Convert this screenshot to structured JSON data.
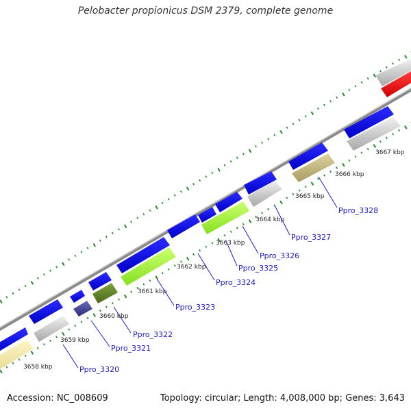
{
  "title": "Pelobacter propionicus DSM 2379, complete genome",
  "footer": {
    "accession": "Accession: NC_008609",
    "summary": "Topology: circular; Length: 4,008,000 bp; Genes: 3,643"
  },
  "colors": {
    "backbone": "#8a8a8a",
    "forward_cds": "#0000ee",
    "gray_feature": "#c8c8c8",
    "tick": "#228822",
    "label": "#1a1acc",
    "red_feature": "#ff0000"
  },
  "kbp_labels": [
    "3658 kbp",
    "3659 kbp",
    "3660 kbp",
    "3661 kbp",
    "3662 kbp",
    "3663 kbp",
    "3664 kbp",
    "3665 kbp",
    "3666 kbp",
    "3667 kbp"
  ],
  "gene_labels": [
    "Ppro_3320",
    "Ppro_3321",
    "Ppro_3322",
    "Ppro_3323",
    "Ppro_3324",
    "Ppro_3325",
    "Ppro_3326",
    "Ppro_3327",
    "Ppro_3328"
  ]
}
